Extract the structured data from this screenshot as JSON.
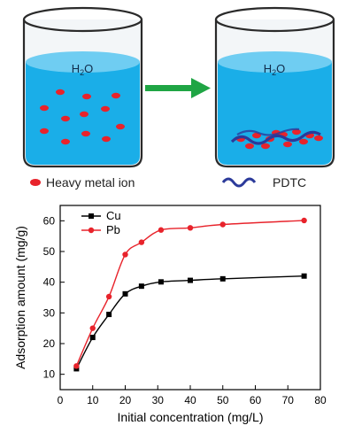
{
  "schematic": {
    "beaker_left_label": "H2O",
    "beaker_right_label": "H2O",
    "legend_ion_label": "Heavy metal ion",
    "legend_pdtc_label": "PDTC",
    "colors": {
      "water": "#1aaee8",
      "water_top": "#6fcdf2",
      "ion": "#e8232b",
      "arrow": "#1fa544",
      "pdtc": "#2b3a9a"
    }
  },
  "chart_data": {
    "type": "line",
    "xlabel": "Initial concentration (mg/L)",
    "ylabel": "Adsorption amount (mg/g)",
    "xlim": [
      0,
      80
    ],
    "ylim": [
      5,
      65
    ],
    "xticks": [
      0,
      10,
      20,
      30,
      40,
      50,
      60,
      70,
      80
    ],
    "yticks": [
      10,
      20,
      30,
      40,
      50,
      60
    ],
    "grid": false,
    "legend_position": "top-left",
    "series": [
      {
        "name": "Cu",
        "color": "#000000",
        "marker": "square",
        "x": [
          5,
          10,
          15,
          20,
          25,
          31,
          40,
          50,
          75
        ],
        "y": [
          11.8,
          22,
          29.5,
          36.2,
          38.7,
          40.1,
          40.6,
          41.1,
          42.0
        ]
      },
      {
        "name": "Pb",
        "color": "#e8232b",
        "marker": "circle",
        "x": [
          5,
          10,
          15,
          20,
          25,
          31,
          40,
          50,
          75
        ],
        "y": [
          12.7,
          25,
          35.3,
          49,
          53,
          57,
          57.7,
          58.8,
          60.1
        ]
      }
    ]
  }
}
